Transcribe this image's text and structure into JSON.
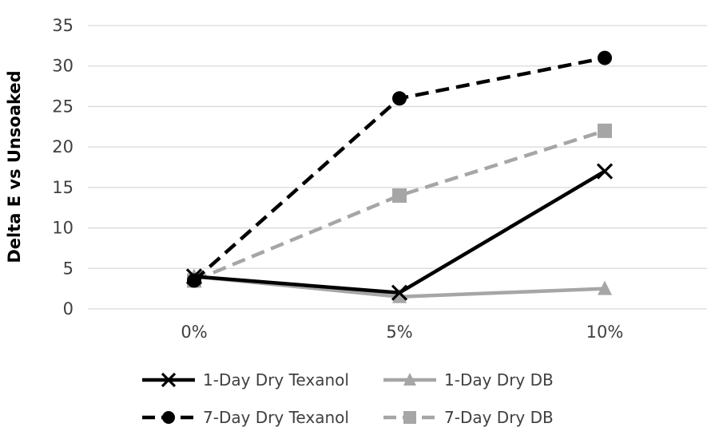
{
  "chart_data": {
    "type": "line",
    "title": "",
    "xlabel": "",
    "ylabel": "Delta E vs Unsoaked",
    "categories": [
      "0%",
      "5%",
      "10%"
    ],
    "ylim": [
      0,
      35
    ],
    "yticks": [
      0,
      5,
      10,
      15,
      20,
      25,
      30,
      35
    ],
    "grid": true,
    "legend_position": "bottom",
    "series": [
      {
        "name": "1-Day Dry Texanol",
        "values": [
          4,
          2,
          17
        ],
        "color": "#000000",
        "dash": "solid",
        "marker": "x"
      },
      {
        "name": "1-Day Dry DB",
        "values": [
          4,
          1.5,
          2.5
        ],
        "color": "#a6a6a6",
        "dash": "solid",
        "marker": "triangle"
      },
      {
        "name": "7-Day Dry Texanol",
        "values": [
          3.5,
          26,
          31
        ],
        "color": "#000000",
        "dash": "dashed",
        "marker": "circle"
      },
      {
        "name": "7-Day Dry DB",
        "values": [
          3.5,
          14,
          22
        ],
        "color": "#a6a6a6",
        "dash": "dashed",
        "marker": "square"
      }
    ]
  }
}
